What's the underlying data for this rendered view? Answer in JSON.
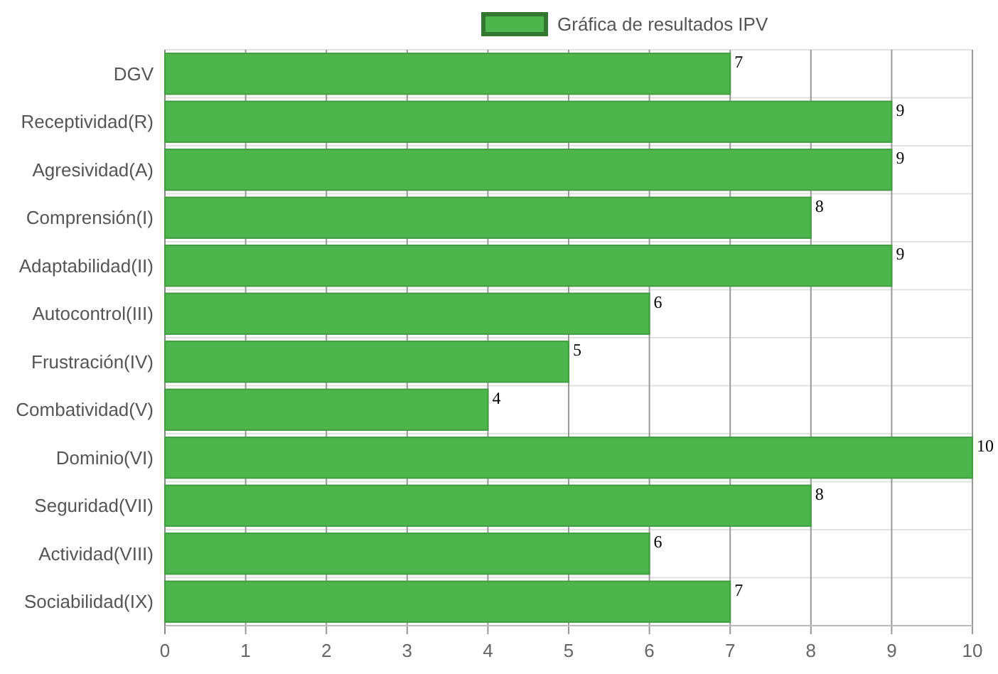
{
  "chart_data": {
    "type": "bar",
    "orientation": "horizontal",
    "categories": [
      "DGV",
      "Receptividad(R)",
      "Agresividad(A)",
      "Comprensión(I)",
      "Adaptabilidad(II)",
      "Autocontrol(III)",
      "Frustración(IV)",
      "Combatividad(V)",
      "Dominio(VI)",
      "Seguridad(VII)",
      "Actividad(VIII)",
      "Sociabilidad(IX)"
    ],
    "series": [
      {
        "name": "Gráfica de resultados IPV",
        "color": "#4cb54c",
        "values": [
          7,
          9,
          9,
          8,
          9,
          6,
          5,
          4,
          10,
          8,
          6,
          7
        ]
      }
    ],
    "xlim": [
      0,
      10
    ],
    "xticks": [
      0,
      1,
      2,
      3,
      4,
      5,
      6,
      7,
      8,
      9,
      10
    ],
    "grid": true,
    "legend": "top",
    "data_labels": true
  }
}
